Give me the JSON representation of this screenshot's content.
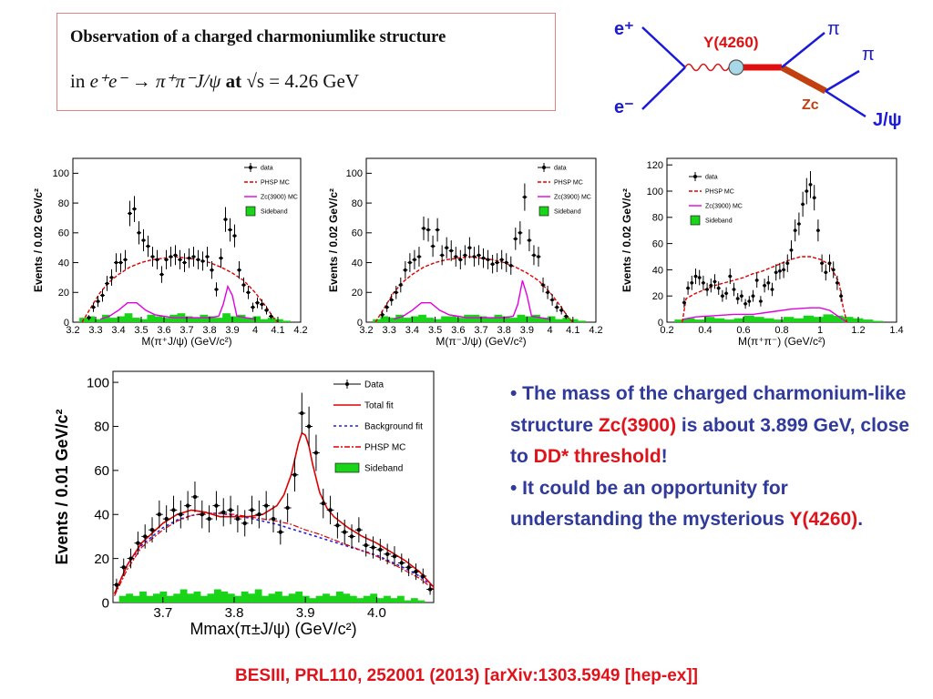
{
  "title": {
    "line1": "Observation of a charged charmoniumlike structure",
    "line2_prefix": "in ",
    "line2_reaction": "e⁺e⁻ → π⁺π⁻J/ψ",
    "line2_at": " at ",
    "line2_energy": "√s = 4.26 GeV"
  },
  "diagram": {
    "eplus": "e⁺",
    "eminus": "e⁻",
    "resonance": "Y(4260)",
    "zc": "Zc",
    "pi1": "π",
    "pi2": "π",
    "jpsi": "J/ψ",
    "colors": {
      "lines": "#1a1ad8",
      "y_line": "#e01010",
      "zc_line": "#c24010",
      "photon": "#d02020",
      "blob": "#a8d8e8"
    }
  },
  "bullets": {
    "b1_part1": "• The mass of the charged charmonium-like structure ",
    "b1_zc": "Zc(3900)",
    "b1_part2": " is about 3.899 GeV, close to ",
    "b1_dd": "DD* threshold",
    "b1_part3": "!",
    "b2_part1": "• It could be an opportunity for understanding the mysterious ",
    "b2_y": "Y(4260)",
    "b2_part2": "."
  },
  "reference": "BESIII, PRL110, 252001 (2013)  [arXiv:1303.5949 [hep-ex]]",
  "chart_data": [
    {
      "type": "scatter",
      "xlabel": "M(π⁺J/ψ) (GeV/c²)",
      "ylabel": "Events / 0.02 GeV/c²",
      "xlim": [
        3.2,
        4.2
      ],
      "ylim": [
        0,
        110
      ],
      "xticks": [
        3.2,
        3.3,
        3.4,
        3.5,
        3.6,
        3.7,
        3.8,
        3.9,
        4.0,
        4.1,
        4.2
      ],
      "xtick_labels": [
        "3.2",
        "3.3",
        "3.4",
        "3.5",
        "3.6",
        "3.7",
        "3.8",
        "3.9",
        "4",
        "4.1",
        "4.2"
      ],
      "yticks": [
        0,
        20,
        40,
        60,
        80,
        100
      ],
      "legend": [
        "data",
        "PHSP MC",
        "Zc(3900) MC",
        "Sideband"
      ],
      "legend_position": "top-right",
      "data": {
        "x": [
          3.27,
          3.29,
          3.31,
          3.33,
          3.35,
          3.37,
          3.39,
          3.41,
          3.43,
          3.45,
          3.47,
          3.49,
          3.51,
          3.53,
          3.55,
          3.57,
          3.59,
          3.61,
          3.63,
          3.65,
          3.67,
          3.69,
          3.71,
          3.73,
          3.75,
          3.77,
          3.79,
          3.81,
          3.83,
          3.85,
          3.87,
          3.89,
          3.91,
          3.93,
          3.95,
          3.97,
          3.99,
          4.01,
          4.03,
          4.05,
          4.07
        ],
        "y": [
          3,
          10,
          14,
          18,
          26,
          30,
          40,
          40,
          42,
          73,
          76,
          60,
          55,
          51,
          44,
          42,
          32,
          42,
          44,
          45,
          42,
          40,
          43,
          44,
          42,
          41,
          44,
          35,
          22,
          43,
          69,
          62,
          58,
          35,
          25,
          20,
          10,
          13,
          12,
          8,
          4
        ]
      },
      "phsp": {
        "x": [
          3.24,
          3.28,
          3.32,
          3.36,
          3.4,
          3.45,
          3.5,
          3.55,
          3.6,
          3.65,
          3.7,
          3.75,
          3.8,
          3.85,
          3.9,
          3.95,
          4.0,
          4.05,
          4.08,
          4.1
        ],
        "y": [
          0,
          10,
          20,
          27,
          32,
          37,
          40,
          42,
          43,
          44,
          43,
          42,
          40,
          37,
          33,
          28,
          20,
          10,
          3,
          0
        ]
      },
      "zc_mc": {
        "x": [
          3.32,
          3.36,
          3.4,
          3.44,
          3.48,
          3.52,
          3.56,
          3.6,
          3.64,
          3.68,
          3.72,
          3.76,
          3.8,
          3.84,
          3.86,
          3.88,
          3.9,
          3.92,
          3.96,
          4.0
        ],
        "y": [
          2,
          4,
          8,
          13,
          13,
          8,
          5,
          4,
          3,
          3,
          3,
          3,
          3,
          4,
          12,
          24,
          18,
          4,
          3,
          2
        ]
      },
      "sideband": [
        3,
        4,
        2,
        5,
        3,
        4,
        6,
        3,
        2,
        5,
        4,
        3,
        5,
        6,
        4,
        3,
        5,
        4,
        3,
        6,
        4,
        5,
        3,
        4,
        2,
        3,
        2,
        1
      ]
    },
    {
      "type": "scatter",
      "xlabel": "M(π⁻J/ψ) (GeV/c²)",
      "ylabel": "Events / 0.02 GeV/c²",
      "xlim": [
        3.2,
        4.2
      ],
      "ylim": [
        0,
        110
      ],
      "xticks": [
        3.2,
        3.3,
        3.4,
        3.5,
        3.6,
        3.7,
        3.8,
        3.9,
        4.0,
        4.1,
        4.2
      ],
      "xtick_labels": [
        "3.2",
        "3.3",
        "3.4",
        "3.5",
        "3.6",
        "3.7",
        "3.8",
        "3.9",
        "4",
        "4.1",
        "4.2"
      ],
      "yticks": [
        0,
        20,
        40,
        60,
        80,
        100
      ],
      "legend": [
        "data",
        "PHSP MC",
        "Zc(3900) MC",
        "Sideband"
      ],
      "legend_position": "top-right",
      "data": {
        "x": [
          3.27,
          3.29,
          3.31,
          3.33,
          3.35,
          3.37,
          3.39,
          3.41,
          3.43,
          3.45,
          3.47,
          3.49,
          3.51,
          3.53,
          3.55,
          3.57,
          3.59,
          3.61,
          3.63,
          3.65,
          3.67,
          3.69,
          3.71,
          3.73,
          3.75,
          3.77,
          3.79,
          3.81,
          3.83,
          3.85,
          3.87,
          3.89,
          3.91,
          3.93,
          3.95,
          3.97,
          3.99,
          4.01,
          4.03,
          4.05,
          4.07
        ],
        "y": [
          5,
          10,
          15,
          20,
          25,
          35,
          40,
          42,
          44,
          63,
          62,
          51,
          62,
          45,
          50,
          48,
          44,
          42,
          45,
          50,
          44,
          45,
          43,
          42,
          39,
          40,
          42,
          40,
          38,
          56,
          60,
          84,
          55,
          45,
          44,
          25,
          20,
          15,
          10,
          8,
          4
        ]
      },
      "phsp": {
        "x": [
          3.24,
          3.28,
          3.32,
          3.36,
          3.4,
          3.45,
          3.5,
          3.55,
          3.6,
          3.65,
          3.7,
          3.75,
          3.8,
          3.85,
          3.9,
          3.95,
          4.0,
          4.05,
          4.08,
          4.1
        ],
        "y": [
          0,
          10,
          20,
          27,
          32,
          37,
          40,
          42,
          43,
          44,
          43,
          42,
          40,
          37,
          33,
          28,
          20,
          10,
          3,
          0
        ]
      },
      "zc_mc": {
        "x": [
          3.32,
          3.36,
          3.4,
          3.44,
          3.48,
          3.52,
          3.56,
          3.6,
          3.64,
          3.68,
          3.72,
          3.76,
          3.8,
          3.84,
          3.86,
          3.88,
          3.9,
          3.92,
          3.96,
          4.0
        ],
        "y": [
          2,
          4,
          8,
          13,
          13,
          8,
          5,
          4,
          3,
          3,
          3,
          3,
          3,
          4,
          12,
          28,
          18,
          4,
          3,
          2
        ]
      },
      "sideband": [
        2,
        4,
        3,
        5,
        3,
        4,
        5,
        3,
        2,
        4,
        4,
        3,
        5,
        5,
        4,
        3,
        5,
        4,
        3,
        5,
        4,
        5,
        3,
        4,
        2,
        3,
        2,
        1
      ]
    },
    {
      "type": "scatter",
      "xlabel": "M(π⁺π⁻) (GeV/c²)",
      "ylabel": "Events / 0.02 GeV/c²",
      "xlim": [
        0.2,
        1.4
      ],
      "ylim": [
        0,
        125
      ],
      "xticks": [
        0.2,
        0.4,
        0.6,
        0.8,
        1.0,
        1.2,
        1.4
      ],
      "xtick_labels": [
        "0.2",
        "0.4",
        "0.6",
        "0.8",
        "1",
        "1.2",
        "1.4"
      ],
      "yticks": [
        0,
        20,
        40,
        60,
        80,
        100,
        120
      ],
      "legend": [
        "data",
        "PHSP MC",
        "Zc(3900) MC",
        "Sideband"
      ],
      "legend_position": "top-left",
      "data": {
        "x": [
          0.29,
          0.31,
          0.33,
          0.35,
          0.37,
          0.39,
          0.41,
          0.43,
          0.45,
          0.47,
          0.49,
          0.51,
          0.53,
          0.55,
          0.57,
          0.59,
          0.61,
          0.63,
          0.65,
          0.67,
          0.69,
          0.71,
          0.73,
          0.75,
          0.77,
          0.79,
          0.81,
          0.83,
          0.85,
          0.87,
          0.89,
          0.91,
          0.93,
          0.95,
          0.97,
          0.99,
          1.01,
          1.03,
          1.05,
          1.07,
          1.09,
          1.11
        ],
        "y": [
          15,
          26,
          30,
          35,
          34,
          30,
          25,
          28,
          31,
          26,
          20,
          22,
          35,
          25,
          18,
          20,
          14,
          16,
          20,
          32,
          16,
          28,
          30,
          25,
          38,
          39,
          40,
          45,
          55,
          70,
          75,
          90,
          100,
          105,
          95,
          70,
          45,
          38,
          45,
          40,
          30,
          20
        ]
      },
      "phsp": {
        "x": [
          0.28,
          0.3,
          0.35,
          0.4,
          0.45,
          0.5,
          0.55,
          0.6,
          0.65,
          0.7,
          0.75,
          0.8,
          0.85,
          0.9,
          0.95,
          1.0,
          1.05,
          1.1,
          1.12,
          1.14
        ],
        "y": [
          0,
          18,
          22,
          25,
          28,
          30,
          32,
          34,
          37,
          39,
          42,
          45,
          48,
          50,
          50,
          48,
          44,
          30,
          12,
          0
        ]
      },
      "zc_mc": {
        "x": [
          0.28,
          0.35,
          0.45,
          0.55,
          0.65,
          0.75,
          0.85,
          0.95,
          1.0,
          1.05,
          1.1,
          1.14
        ],
        "y": [
          2,
          4,
          5,
          6,
          6,
          8,
          10,
          11,
          11,
          9,
          4,
          0
        ]
      },
      "sideband": [
        2,
        3,
        2,
        4,
        3,
        2,
        3,
        5,
        4,
        3,
        2,
        4,
        3,
        5,
        4,
        6,
        5,
        4,
        3,
        2,
        1
      ]
    },
    {
      "type": "scatter",
      "xlabel": "Mmax(π±J/ψ) (GeV/c²)",
      "ylabel": "Events / 0.01 GeV/c²",
      "xlim": [
        3.63,
        4.08
      ],
      "ylim": [
        0,
        105
      ],
      "xticks": [
        3.7,
        3.8,
        3.9,
        4.0
      ],
      "xtick_labels": [
        "3.7",
        "3.8",
        "3.9",
        "4.0"
      ],
      "yticks": [
        0,
        20,
        40,
        60,
        80,
        100
      ],
      "legend": [
        "Data",
        "Total fit",
        "Background fit",
        "PHSP MC",
        "Sideband"
      ],
      "legend_position": "top-right",
      "data": {
        "x": [
          3.635,
          3.645,
          3.655,
          3.665,
          3.675,
          3.685,
          3.695,
          3.705,
          3.715,
          3.725,
          3.735,
          3.745,
          3.755,
          3.765,
          3.775,
          3.785,
          3.795,
          3.805,
          3.815,
          3.825,
          3.835,
          3.845,
          3.855,
          3.865,
          3.875,
          3.885,
          3.895,
          3.905,
          3.915,
          3.925,
          3.935,
          3.945,
          3.955,
          3.965,
          3.975,
          3.985,
          3.995,
          4.005,
          4.015,
          4.025,
          4.035,
          4.045,
          4.055,
          4.065,
          4.075
        ],
        "y": [
          8,
          16,
          20,
          27,
          30,
          33,
          40,
          38,
          42,
          40,
          44,
          48,
          40,
          38,
          44,
          41,
          42,
          38,
          36,
          42,
          40,
          44,
          38,
          32,
          43,
          58,
          86,
          80,
          68,
          45,
          42,
          35,
          32,
          30,
          33,
          26,
          25,
          24,
          22,
          21,
          18,
          16,
          14,
          12,
          6
        ]
      },
      "total_fit": {
        "x": [
          3.632,
          3.65,
          3.67,
          3.7,
          3.72,
          3.74,
          3.76,
          3.78,
          3.8,
          3.82,
          3.84,
          3.85,
          3.86,
          3.87,
          3.88,
          3.89,
          3.895,
          3.9,
          3.905,
          3.91,
          3.92,
          3.93,
          3.94,
          3.96,
          3.98,
          4.0,
          4.02,
          4.04,
          4.06,
          4.08
        ],
        "y": [
          4,
          17,
          27,
          36,
          40,
          42,
          41,
          39,
          39,
          39,
          40,
          42,
          44,
          49,
          58,
          72,
          77,
          76,
          71,
          63,
          50,
          43,
          39,
          34,
          30,
          27,
          23,
          19,
          14,
          7
        ]
      },
      "background_fit": {
        "x": [
          3.632,
          3.65,
          3.67,
          3.7,
          3.72,
          3.74,
          3.76,
          3.78,
          3.8,
          3.82,
          3.84,
          3.86,
          3.88,
          3.9,
          3.92,
          3.94,
          3.96,
          3.98,
          4.0,
          4.02,
          4.04,
          4.06,
          4.08
        ],
        "y": [
          4,
          17,
          26,
          34,
          37.5,
          39.5,
          40.5,
          40.5,
          39.5,
          38.5,
          37,
          35.5,
          33.5,
          31.5,
          29.5,
          27.5,
          25.5,
          23.5,
          21.5,
          18.5,
          15.5,
          12,
          7
        ]
      },
      "phsp_mc": {
        "x": [
          3.632,
          3.65,
          3.67,
          3.7,
          3.72,
          3.74,
          3.76,
          3.78,
          3.8,
          3.82,
          3.84,
          3.86,
          3.88,
          3.9,
          3.92,
          3.94,
          3.96,
          3.98,
          4.0,
          4.02,
          4.04,
          4.06,
          4.08
        ],
        "y": [
          3,
          15,
          25,
          33,
          37,
          39.5,
          40.5,
          40.5,
          40,
          39,
          38,
          37,
          35.5,
          33,
          31,
          28.5,
          26,
          23.5,
          21,
          18,
          14.5,
          11,
          6
        ]
      },
      "sideband": [
        3,
        4,
        3,
        5,
        3,
        4,
        5,
        3,
        4,
        6,
        4,
        5,
        3,
        4,
        6,
        5,
        4,
        3,
        5,
        4,
        6,
        3,
        4,
        5,
        3,
        4,
        5,
        3,
        2,
        3,
        4,
        3,
        5,
        4,
        3,
        2,
        3,
        4,
        2,
        3,
        2,
        3,
        1,
        2,
        1
      ]
    }
  ]
}
